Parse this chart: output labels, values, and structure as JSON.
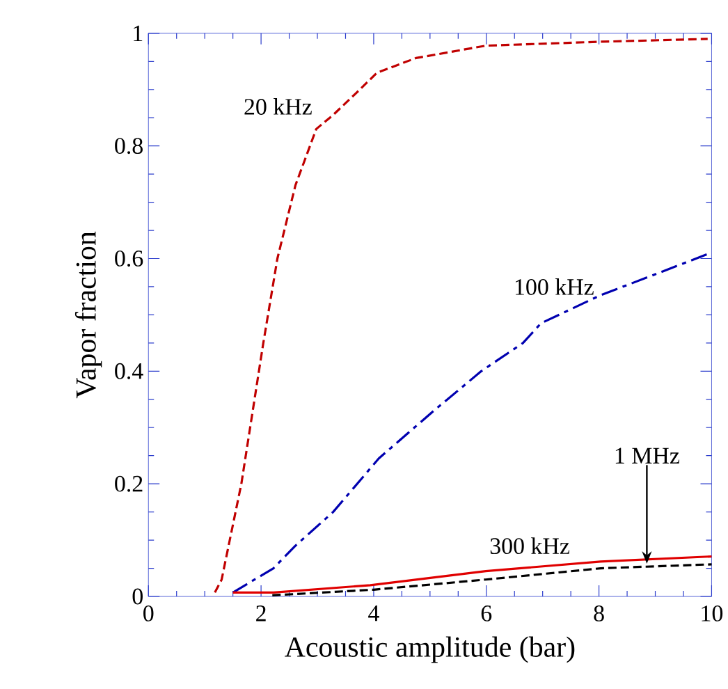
{
  "chart_data": {
    "type": "line",
    "xlabel": "Acoustic amplitude (bar)",
    "ylabel": "Vapor fraction",
    "xlim": [
      0,
      10
    ],
    "ylim": [
      0,
      1
    ],
    "xticks": [
      0,
      2,
      4,
      6,
      8,
      10
    ],
    "yticks": [
      0,
      0.2,
      0.4,
      0.6,
      0.8,
      1
    ],
    "grid": false,
    "marker": "none",
    "series": [
      {
        "name": "20 kHz",
        "color": "#c00000",
        "line_style": "dashed",
        "x": [
          1.18,
          1.3,
          1.65,
          2.04,
          2.29,
          2.61,
          2.98,
          3.28,
          3.69,
          4.06,
          4.75,
          5.99,
          8.03,
          9.93
        ],
        "values": [
          0.007,
          0.03,
          0.2,
          0.45,
          0.6,
          0.73,
          0.83,
          0.855,
          0.894,
          0.93,
          0.956,
          0.978,
          0.985,
          0.99
        ]
      },
      {
        "name": "100 kHz",
        "color": "#0000b0",
        "line_style": "dashdot",
        "x": [
          1.5,
          2.22,
          2.61,
          3.28,
          4.09,
          5.07,
          5.91,
          6.65,
          6.97,
          8.03,
          8.87,
          9.93
        ],
        "values": [
          0.007,
          0.05,
          0.09,
          0.15,
          0.245,
          0.33,
          0.4,
          0.45,
          0.485,
          0.535,
          0.567,
          0.608
        ]
      },
      {
        "name": "300 kHz",
        "color": "#e00000",
        "line_style": "solid",
        "x": [
          1.5,
          2.22,
          3.94,
          5.99,
          8.03,
          10
        ],
        "values": [
          0.007,
          0.007,
          0.02,
          0.045,
          0.062,
          0.071
        ]
      },
      {
        "name": "1 MHz",
        "color": "#000000",
        "line_style": "dashed",
        "x": [
          2.2,
          4,
          5.99,
          8.03,
          10
        ],
        "values": [
          0.002,
          0.012,
          0.03,
          0.05,
          0.057
        ]
      }
    ]
  }
}
